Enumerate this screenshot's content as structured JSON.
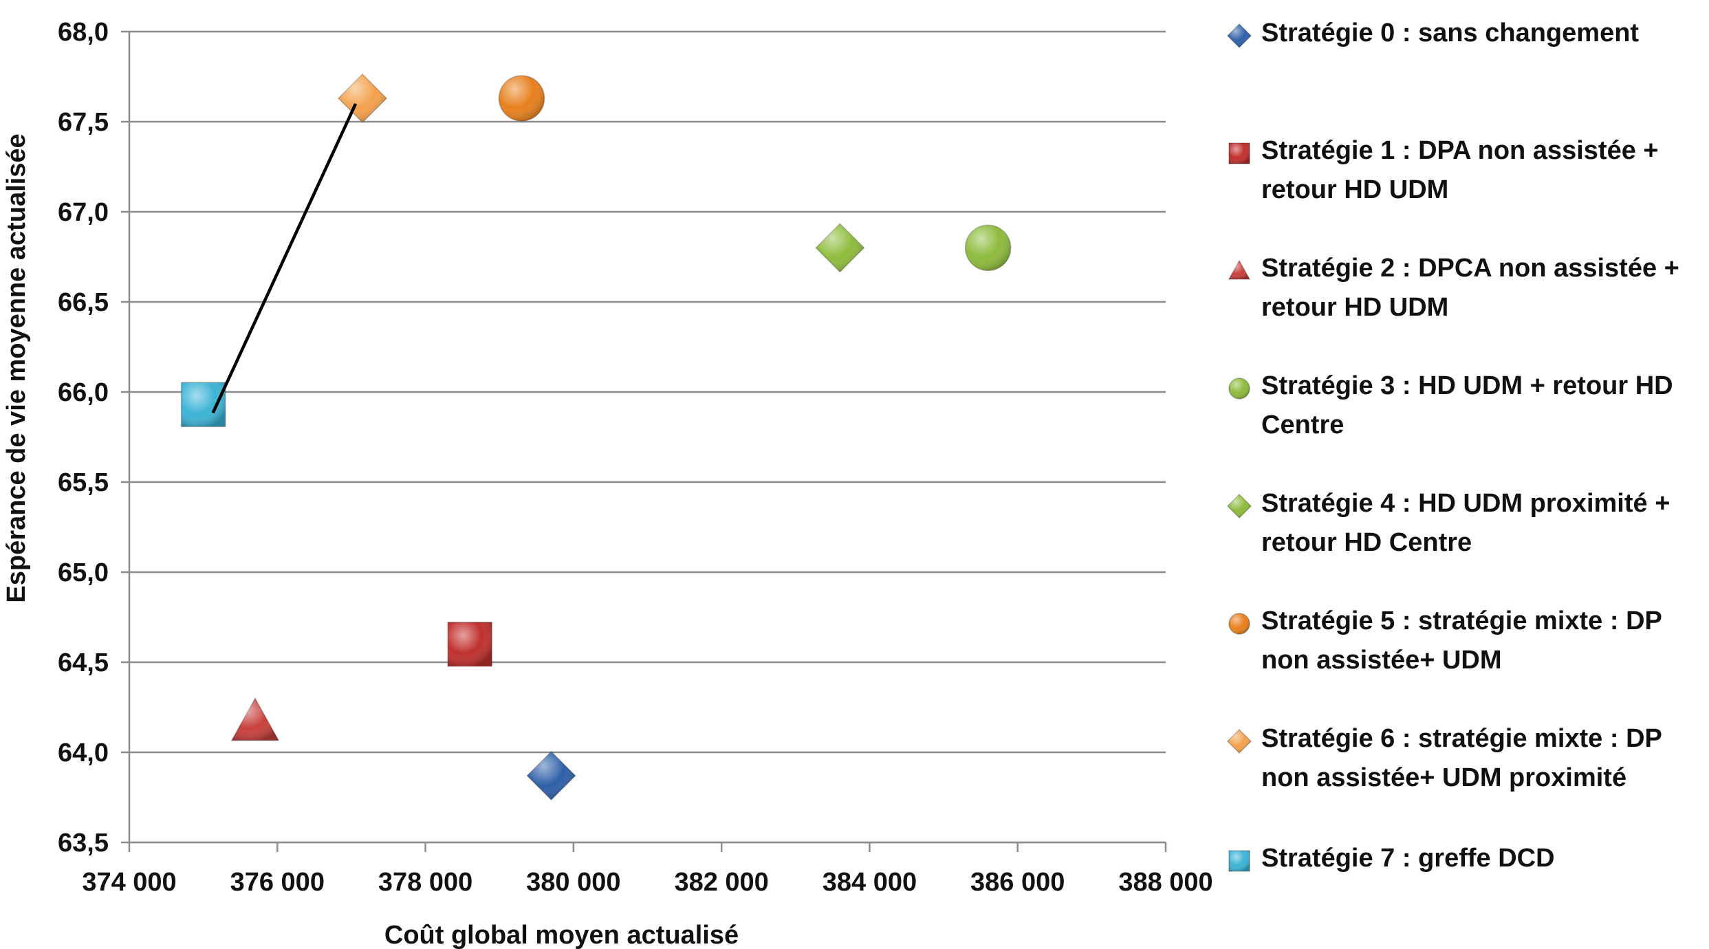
{
  "chart_data": {
    "type": "scatter",
    "title": "",
    "xlabel": "Coût global moyen actualisé",
    "ylabel": "Espérance de vie moyenne actualisée",
    "xlim": [
      374000,
      388000
    ],
    "ylim": [
      63.5,
      68.0
    ],
    "x_ticks": [
      "374 000",
      "376 000",
      "378 000",
      "380 000",
      "382 000",
      "384 000",
      "386 000",
      "388 000"
    ],
    "x_tick_values": [
      374000,
      376000,
      378000,
      380000,
      382000,
      384000,
      386000,
      388000
    ],
    "y_ticks": [
      "63,5",
      "64,0",
      "64,5",
      "65,0",
      "65,5",
      "66,0",
      "66,5",
      "67,0",
      "67,5",
      "68,0"
    ],
    "y_tick_values": [
      63.5,
      64.0,
      64.5,
      65.0,
      65.5,
      66.0,
      66.5,
      67.0,
      67.5,
      68.0
    ],
    "grid": "horizontal",
    "legend_position": "right",
    "series": [
      {
        "name": "Stratégie 0 : sans changement",
        "legend_lines": [
          "Stratégie 0 : sans changement"
        ],
        "marker": "diamond",
        "color": "#2E5FA8",
        "x": 379700,
        "y": 63.87
      },
      {
        "name": "Stratégie 1 : DPA non assistée + retour HD UDM",
        "legend_lines": [
          "Stratégie 1 : DPA non assistée +",
          "retour HD UDM"
        ],
        "marker": "square",
        "color": "#C0302E",
        "x": 378600,
        "y": 64.6
      },
      {
        "name": "Stratégie 2 : DPCA non assistée + retour HD UDM",
        "legend_lines": [
          "Stratégie 2 : DPCA non assistée +",
          "retour HD UDM"
        ],
        "marker": "triangle",
        "color": "#C8403E",
        "x": 375700,
        "y": 64.17
      },
      {
        "name": "Stratégie 3 : HD UDM + retour HD Centre",
        "legend_lines": [
          "Stratégie 3 : HD UDM + retour HD",
          "Centre"
        ],
        "marker": "circle",
        "color": "#8DBB3C",
        "x": 385600,
        "y": 66.8
      },
      {
        "name": "Stratégie 4 : HD UDM proximité + retour HD Centre",
        "legend_lines": [
          "Stratégie 4 :  HD UDM proximité +",
          "retour HD Centre"
        ],
        "marker": "diamond",
        "color": "#8DBB3C",
        "x": 383600,
        "y": 66.8
      },
      {
        "name": "Stratégie 5 : stratégie mixte : DP non assistée+ UDM",
        "legend_lines": [
          "Stratégie 5 : stratégie mixte :  DP",
          "non assistée+ UDM"
        ],
        "marker": "circle",
        "color": "#E8801E",
        "x": 379300,
        "y": 67.63
      },
      {
        "name": "Stratégie 6 : stratégie mixte : DP non assistée+ UDM proximité",
        "legend_lines": [
          "Stratégie 6 : stratégie mixte :  DP",
          "non assistée+ UDM proximité"
        ],
        "marker": "diamond",
        "color": "#F4A14C",
        "x": 377150,
        "y": 67.63
      },
      {
        "name": "Stratégie 7 : greffe DCD",
        "legend_lines": [
          "Stratégie 7 : greffe DCD"
        ],
        "marker": "square",
        "color": "#3DB4D6",
        "x": 375000,
        "y": 65.93
      }
    ],
    "frontier_line": {
      "from_series": "Stratégie 7 : greffe DCD",
      "to_series": "Stratégie 6 : stratégie mixte : DP non assistée+ UDM proximité",
      "color": "#000000"
    }
  }
}
